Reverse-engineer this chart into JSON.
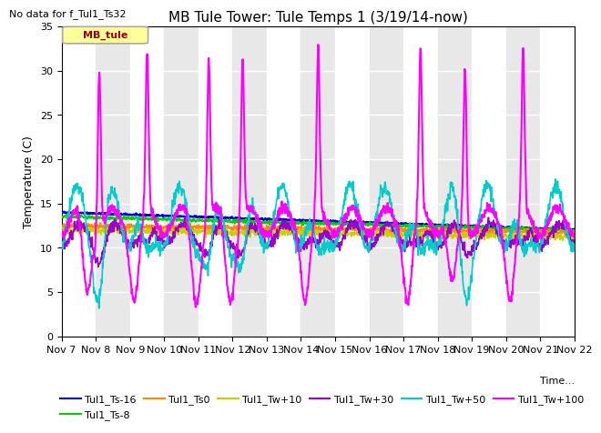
{
  "title": "MB Tule Tower: Tule Temps 1 (3/19/14-now)",
  "no_data_text": "No data for f_Tul1_Ts32",
  "ylabel": "Temperature (C)",
  "xlabel": "Time...",
  "ylim": [
    0,
    35
  ],
  "x_tick_labels": [
    "Nov 7",
    "Nov 8",
    "Nov 9",
    "Nov 10",
    "Nov 11",
    "Nov 12",
    "Nov 13",
    "Nov 14",
    "Nov 15",
    "Nov 16",
    "Nov 17",
    "Nov 18",
    "Nov 19",
    "Nov 20",
    "Nov 21",
    "Nov 22"
  ],
  "legend_box_label": "MB_tule",
  "legend_box_bg": "#ffff99",
  "legend_box_edge": "#aaaaaa",
  "legend_box_text": "#990000",
  "series": [
    {
      "label": "Tul1_Ts-16",
      "color": "#0000cc",
      "lw": 1.5
    },
    {
      "label": "Tul1_Ts-8",
      "color": "#00cc00",
      "lw": 1.2
    },
    {
      "label": "Tul1_Ts0",
      "color": "#ff8800",
      "lw": 1.2
    },
    {
      "label": "Tul1_Tw+10",
      "color": "#cccc00",
      "lw": 1.2
    },
    {
      "label": "Tul1_Tw+30",
      "color": "#9900cc",
      "lw": 1.2
    },
    {
      "label": "Tul1_Tw+50",
      "color": "#00cccc",
      "lw": 1.2
    },
    {
      "label": "Tul1_Tw+100",
      "color": "#ff00ff",
      "lw": 1.5
    }
  ],
  "bg_color": "#ffffff",
  "plot_bg_color": "#e8e8e8",
  "grid_color": "#ffffff",
  "title_fontsize": 11,
  "axis_fontsize": 9,
  "tick_fontsize": 8
}
